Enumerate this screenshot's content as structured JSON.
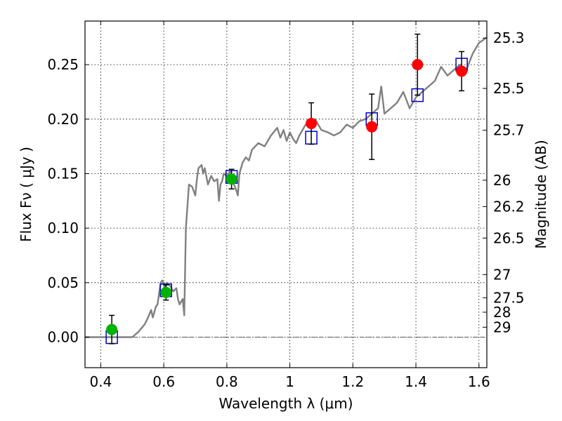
{
  "chart_data": {
    "type": "scatter",
    "xlabel": "Wavelength  λ (μm)",
    "ylabel": "Flux  Fν  ( μJy )",
    "ylabel_right": "Magnitude (AB)",
    "xlim": [
      0.35,
      1.625
    ],
    "ylim": [
      -0.028,
      0.29
    ],
    "grid": true,
    "x_ticks": [
      0.4,
      0.6,
      0.8,
      1.0,
      1.2,
      1.4,
      1.6
    ],
    "x_tick_labels": [
      "0.4",
      "0.6",
      "0.8",
      "1",
      "1.2",
      "1.4",
      "1.6"
    ],
    "y_ticks": [
      0.0,
      0.05,
      0.1,
      0.15,
      0.2,
      0.25
    ],
    "y_tick_labels": [
      "0.00",
      "0.05",
      "0.10",
      "0.15",
      "0.20",
      "0.25"
    ],
    "right_ticks": [
      {
        "label": "25.3",
        "flux": 0.2744
      },
      {
        "label": "25.5",
        "flux": 0.2282
      },
      {
        "label": "25.7",
        "flux": 0.1898
      },
      {
        "label": "26",
        "flux": 0.144
      },
      {
        "label": "26.2",
        "flux": 0.1198
      },
      {
        "label": "26.5",
        "flux": 0.0909
      },
      {
        "label": "27",
        "flux": 0.0574
      },
      {
        "label": "27.5",
        "flux": 0.0362
      },
      {
        "label": "28",
        "flux": 0.0229
      },
      {
        "label": "29",
        "flux": 0.0091
      }
    ],
    "zero_line": 0.0,
    "colors": {
      "model": "#808080",
      "model_box": "#0000cc",
      "optical": "#00b300",
      "nir": "#ff0000",
      "errorbar": "#000000",
      "zero_line": "#555555"
    },
    "series": [
      {
        "kind": "line",
        "x": [
          0.35,
          0.48,
          0.5,
          0.52,
          0.54,
          0.55,
          0.56,
          0.565,
          0.575,
          0.58,
          0.585,
          0.59,
          0.595,
          0.6,
          0.605,
          0.61,
          0.62,
          0.63,
          0.64,
          0.645,
          0.65,
          0.66,
          0.665,
          0.67,
          0.675,
          0.68,
          0.69,
          0.7,
          0.705,
          0.71,
          0.72,
          0.725,
          0.73,
          0.74,
          0.75,
          0.76,
          0.77,
          0.775,
          0.78,
          0.785,
          0.79,
          0.8,
          0.81,
          0.82,
          0.83,
          0.835,
          0.84,
          0.85,
          0.86,
          0.87,
          0.88,
          0.9,
          0.92,
          0.94,
          0.96,
          0.97,
          0.98,
          0.99,
          1.0,
          1.01,
          1.02,
          1.03,
          1.04,
          1.05,
          1.07,
          1.08,
          1.1,
          1.12,
          1.14,
          1.16,
          1.18,
          1.2,
          1.22,
          1.24,
          1.26,
          1.28,
          1.29,
          1.3,
          1.32,
          1.34,
          1.36,
          1.38,
          1.4,
          1.42,
          1.44,
          1.46,
          1.48,
          1.5,
          1.52,
          1.54,
          1.56,
          1.58,
          1.6,
          1.625
        ],
        "y": [
          0.0,
          0.0,
          0.0,
          0.005,
          0.012,
          0.018,
          0.025,
          0.018,
          0.028,
          0.03,
          0.04,
          0.05,
          0.052,
          0.048,
          0.045,
          0.05,
          0.047,
          0.042,
          0.045,
          0.035,
          0.03,
          0.035,
          0.02,
          0.1,
          0.12,
          0.14,
          0.138,
          0.13,
          0.145,
          0.155,
          0.158,
          0.15,
          0.155,
          0.14,
          0.148,
          0.143,
          0.145,
          0.125,
          0.14,
          0.143,
          0.15,
          0.148,
          0.152,
          0.142,
          0.135,
          0.13,
          0.15,
          0.16,
          0.165,
          0.162,
          0.172,
          0.178,
          0.175,
          0.185,
          0.192,
          0.183,
          0.19,
          0.18,
          0.188,
          0.182,
          0.178,
          0.185,
          0.19,
          0.195,
          0.195,
          0.2,
          0.19,
          0.188,
          0.185,
          0.188,
          0.195,
          0.192,
          0.198,
          0.2,
          0.205,
          0.21,
          0.23,
          0.205,
          0.21,
          0.215,
          0.225,
          0.21,
          0.22,
          0.225,
          0.23,
          0.235,
          0.248,
          0.24,
          0.245,
          0.25,
          0.245,
          0.26,
          0.27,
          0.275
        ]
      },
      {
        "kind": "model-boxes",
        "x": [
          0.435,
          0.607,
          0.815,
          1.068,
          1.26,
          1.405,
          1.545
        ],
        "y": [
          0.0,
          0.043,
          0.147,
          0.183,
          0.2,
          0.222,
          0.25
        ]
      },
      {
        "kind": "points",
        "color": "optical",
        "x": [
          0.435,
          0.607,
          0.815
        ],
        "y": [
          0.007,
          0.041,
          0.145
        ],
        "err": [
          0.013,
          0.007,
          0.009
        ]
      },
      {
        "kind": "points",
        "color": "nir",
        "x": [
          1.068,
          1.26,
          1.405,
          1.545
        ],
        "y": [
          0.196,
          0.193,
          0.25,
          0.244
        ],
        "err": [
          0.019,
          0.03,
          0.028,
          0.018
        ]
      }
    ]
  }
}
